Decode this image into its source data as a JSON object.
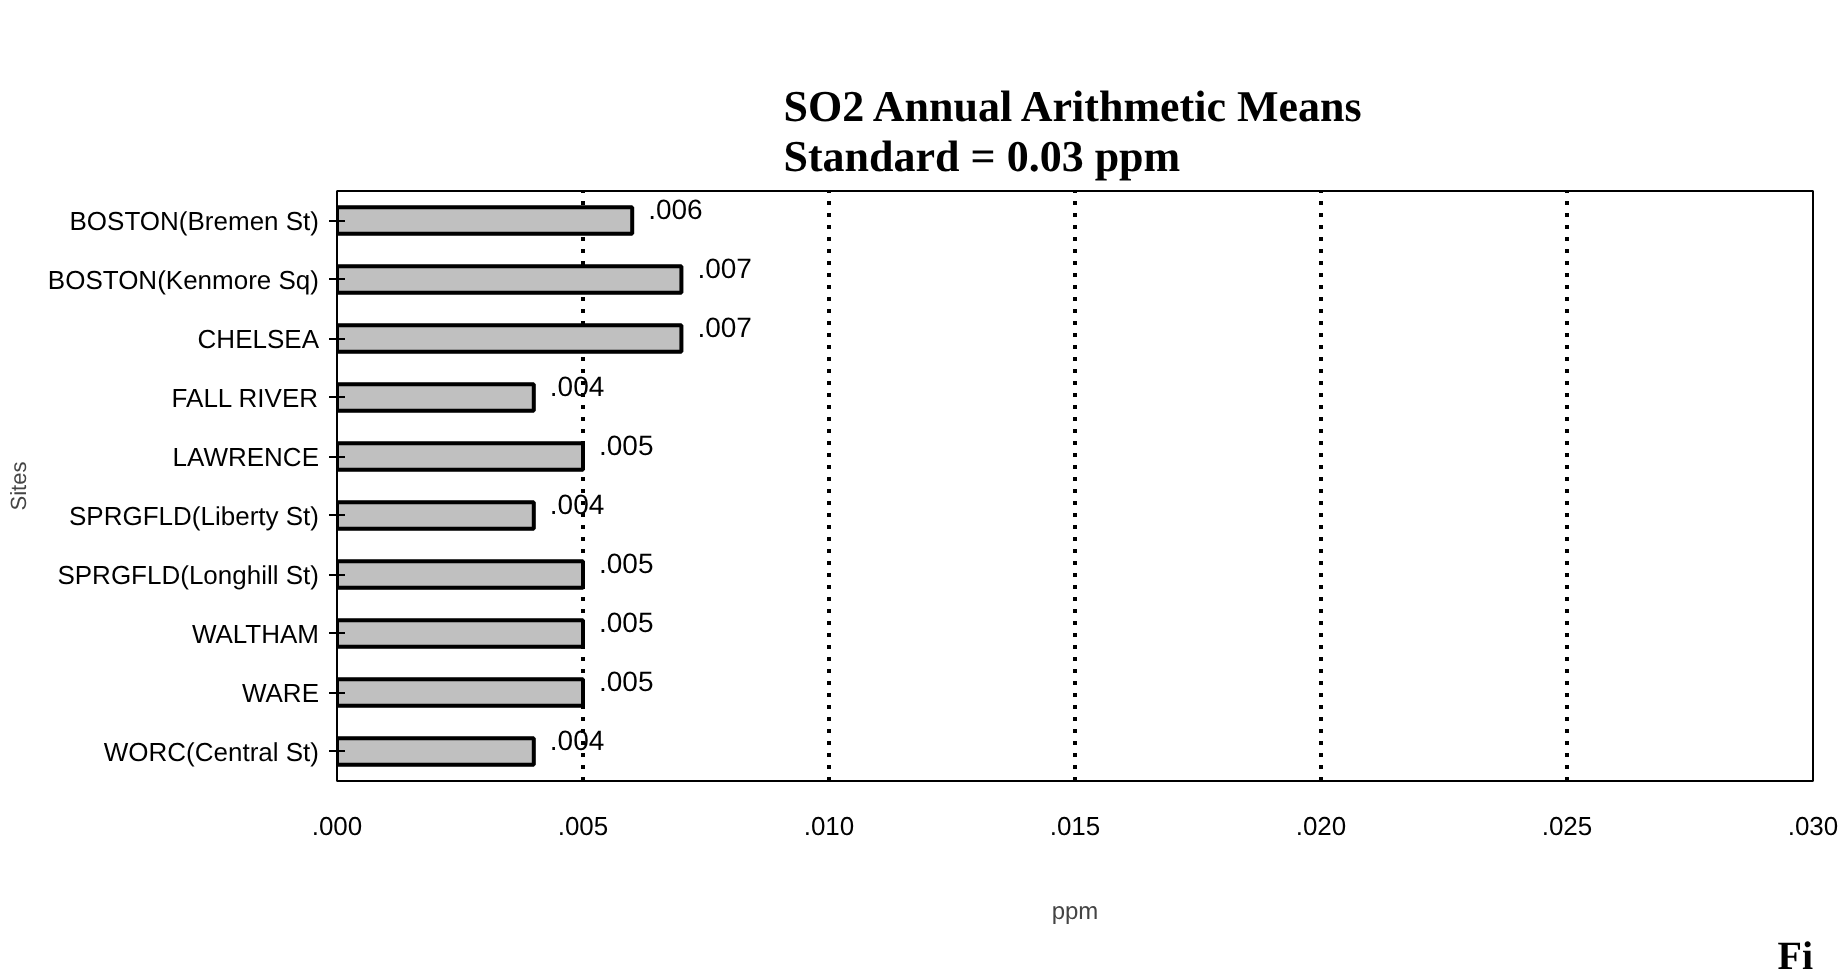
{
  "chart_data": {
    "type": "bar",
    "orientation": "horizontal",
    "title": "SO2 Annual Arithmetic Means\nStandard = 0.03 ppm",
    "xlabel": "ppm",
    "ylabel": "Sites",
    "categories": [
      "BOSTON(Bremen St)",
      "BOSTON(Kenmore Sq)",
      "CHELSEA",
      "FALL RIVER",
      "LAWRENCE",
      "SPRGFLD(Liberty St)",
      "SPRGFLD(Longhill St)",
      "WALTHAM",
      "WARE",
      "WORC(Central St)"
    ],
    "values": [
      0.006,
      0.007,
      0.007,
      0.004,
      0.005,
      0.004,
      0.005,
      0.005,
      0.005,
      0.004
    ],
    "value_labels": [
      ".006",
      ".007",
      ".007",
      ".004",
      ".005",
      ".004",
      ".005",
      ".005",
      ".005",
      ".004"
    ],
    "color": "#c0c0c0",
    "xlim": [
      0,
      0.03
    ],
    "xticks": [
      {
        "value": 0,
        "label": ".000"
      },
      {
        "value": 0.005,
        "label": ".005"
      },
      {
        "value": 0.01,
        "label": ".010"
      },
      {
        "value": 0.015,
        "label": ".015"
      },
      {
        "value": 0.02,
        "label": ".020"
      },
      {
        "value": 0.025,
        "label": ".025"
      },
      {
        "value": 0.03,
        "label": ".030"
      }
    ],
    "grid": "x",
    "annotations": [
      "Fi"
    ]
  }
}
